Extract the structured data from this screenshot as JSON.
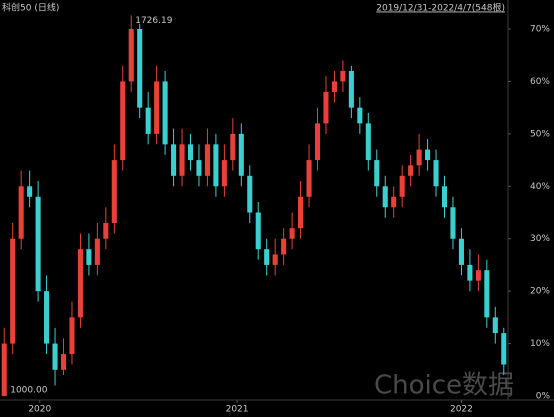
{
  "chart_data": {
    "type": "candlestick",
    "title": "科创50 (日线)",
    "subtitle": "2019/12/31-2022/4/7(548根)",
    "watermark": "Choice数据",
    "annotations": [
      "1726.19",
      "1000.00"
    ],
    "up_color": "#e8413a",
    "down_color": "#3ccfcf",
    "open": [
      0,
      10,
      30,
      40,
      38,
      20,
      10,
      5,
      8,
      15,
      28,
      25,
      30,
      33,
      45,
      60,
      70,
      55,
      50,
      60,
      48,
      42,
      48,
      45,
      42,
      48,
      40,
      45,
      50,
      42,
      35,
      28,
      25,
      27,
      30,
      32,
      38,
      45,
      52,
      58,
      60,
      62,
      55,
      52,
      45,
      40,
      36,
      38,
      42,
      44,
      47,
      45,
      40,
      36,
      30,
      25,
      22,
      24,
      15,
      12
    ],
    "high": [
      13,
      33,
      43,
      43,
      41,
      23,
      13,
      11,
      18,
      31,
      31,
      33,
      36,
      48,
      63,
      72.6,
      71,
      58,
      63,
      62,
      51,
      51,
      50,
      48,
      51,
      50,
      48,
      53,
      52,
      44,
      37,
      30,
      30,
      32,
      35,
      41,
      48,
      55,
      61,
      62,
      64,
      63,
      57,
      54,
      47,
      42,
      40,
      44,
      46,
      50,
      49,
      47,
      42,
      38,
      32,
      28,
      27,
      26,
      17,
      13
    ],
    "low": [
      0,
      8,
      28,
      36,
      18,
      8,
      2,
      4,
      6,
      13,
      23,
      23,
      28,
      31,
      43,
      58,
      53,
      48,
      48,
      46,
      40,
      40,
      43,
      40,
      40,
      38,
      38,
      43,
      40,
      33,
      26,
      23,
      23,
      25,
      28,
      30,
      36,
      43,
      50,
      56,
      58,
      53,
      50,
      43,
      38,
      34,
      34,
      36,
      40,
      42,
      43,
      38,
      34,
      28,
      23,
      20,
      20,
      13,
      10,
      4
    ],
    "close": [
      10,
      30,
      40,
      38,
      20,
      10,
      5,
      8,
      15,
      28,
      25,
      30,
      33,
      45,
      60,
      70,
      55,
      50,
      60,
      48,
      42,
      48,
      45,
      42,
      48,
      40,
      45,
      50,
      42,
      35,
      28,
      25,
      27,
      30,
      32,
      38,
      45,
      52,
      58,
      60,
      62,
      55,
      52,
      45,
      40,
      36,
      38,
      42,
      44,
      47,
      45,
      40,
      36,
      30,
      25,
      22,
      24,
      15,
      12,
      6
    ],
    "xlim": [
      0,
      60
    ],
    "xticks": [
      {
        "value": 4.7,
        "label": "2020"
      },
      {
        "value": 28,
        "label": "2021"
      },
      {
        "value": 54.5,
        "label": "2022"
      }
    ],
    "ylim": [
      0,
      70
    ],
    "yticks": [
      {
        "value": 0,
        "label": "0%"
      },
      {
        "value": 10,
        "label": "10%"
      },
      {
        "value": 20,
        "label": "20%"
      },
      {
        "value": 30,
        "label": "30%"
      },
      {
        "value": 40,
        "label": "40%"
      },
      {
        "value": 50,
        "label": "50%"
      },
      {
        "value": 60,
        "label": "60%"
      },
      {
        "value": 70,
        "label": "70%"
      }
    ]
  }
}
